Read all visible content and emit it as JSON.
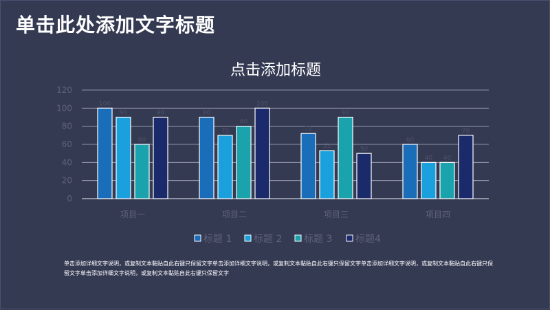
{
  "slide": {
    "title": "单击此处添加文字标题",
    "caption": "单击添加详细文字说明，或复制文本黏贴自此右键只保留文字单击添加详细文字说明，或复制文本黏贴自此右键只保留文字单击添加详细文字说明，或复制文本黏贴自此右键只保留文字单击添加详细文字说明，或复制文本黏贴自此右键只保留文字"
  },
  "colors": {
    "background": "#353a53",
    "series": [
      "#1a6db8",
      "#1aa0dc",
      "#1aa3ad",
      "#1a2a6a"
    ]
  },
  "chart_data": {
    "type": "bar",
    "title": "点击添加标题",
    "categories": [
      "项目一",
      "项目二",
      "项目三",
      "项目四"
    ],
    "ylim": [
      0,
      120
    ],
    "yticks": [
      0,
      20,
      40,
      60,
      80,
      100,
      120
    ],
    "grid": true,
    "legend": "bottom",
    "series": [
      {
        "name": "标题 1",
        "values": [
          100,
          90,
          72,
          60
        ]
      },
      {
        "name": "标题 2",
        "values": [
          90,
          70,
          53,
          40
        ]
      },
      {
        "name": "标题 3",
        "values": [
          60,
          80,
          90,
          40
        ]
      },
      {
        "name": "标题4",
        "values": [
          90,
          100,
          50,
          70
        ]
      }
    ]
  }
}
